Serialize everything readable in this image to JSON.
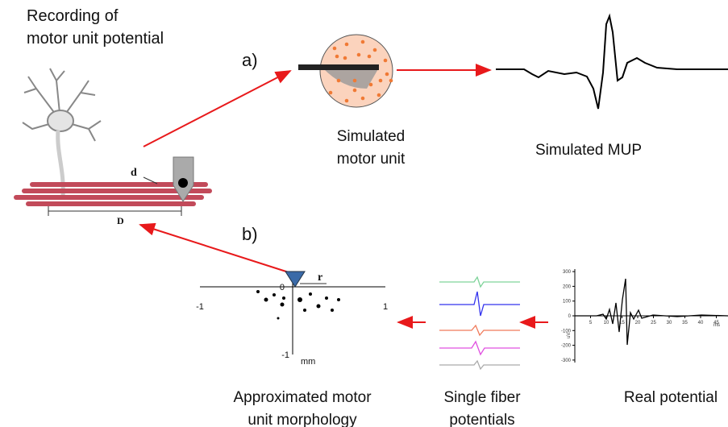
{
  "header": {
    "title_lines": [
      "Recording of",
      "motor unit potential"
    ]
  },
  "labels": {
    "a": "a)",
    "b": "b)"
  },
  "neuron_diagram": {
    "d": "d",
    "D": "D"
  },
  "captions": {
    "simulated_motor_unit": [
      "Simulated",
      "motor unit"
    ],
    "simulated_mup": "Simulated MUP",
    "morphology": [
      "Approximated motor",
      "unit morphology"
    ],
    "single_fiber": [
      "Single fiber",
      "potentials"
    ],
    "real_potential": "Real potential"
  },
  "morphology_plot": {
    "xticks": [
      -1,
      0,
      1
    ],
    "yticks": [
      0,
      -1
    ],
    "unit": "mm",
    "r": "r"
  },
  "real_plot": {
    "yticks": [
      300,
      200,
      100,
      0,
      -100,
      -200,
      -300
    ],
    "xticks": [
      5,
      10,
      15,
      20,
      25,
      30,
      35,
      40,
      45
    ],
    "y_unit": "uV",
    "x_unit": "ms"
  }
}
